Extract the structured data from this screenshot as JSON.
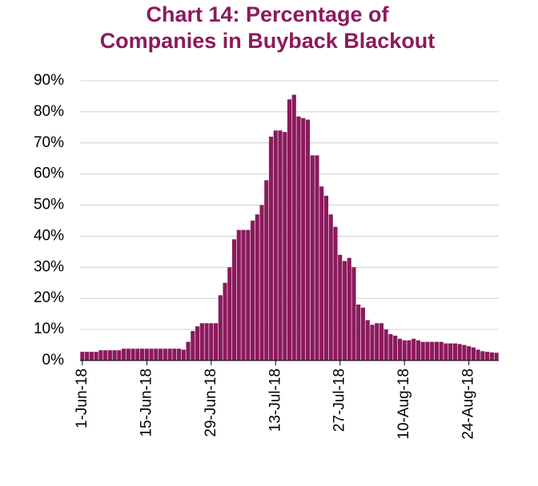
{
  "chart_data": {
    "type": "bar",
    "title": [
      "Chart 14: Percentage of",
      "Companies in Buyback Blackout"
    ],
    "categories": [
      "1-Jun-18",
      null,
      null,
      null,
      null,
      null,
      null,
      null,
      null,
      null,
      null,
      null,
      null,
      null,
      "15-Jun-18",
      null,
      null,
      null,
      null,
      null,
      null,
      null,
      null,
      null,
      null,
      null,
      null,
      null,
      "29-Jun-18",
      null,
      null,
      null,
      null,
      null,
      null,
      null,
      null,
      null,
      null,
      null,
      null,
      null,
      "13-Jul-18",
      null,
      null,
      null,
      null,
      null,
      null,
      null,
      null,
      null,
      null,
      null,
      null,
      null,
      "27-Jul-18",
      null,
      null,
      null,
      null,
      null,
      null,
      null,
      null,
      null,
      null,
      null,
      null,
      null,
      "10-Aug-18",
      null,
      null,
      null,
      null,
      null,
      null,
      null,
      null,
      null,
      null,
      null,
      null,
      null,
      "24-Aug-18",
      null,
      null,
      null,
      null,
      null,
      null
    ],
    "values": [
      2.8,
      2.8,
      2.8,
      2.8,
      3.3,
      3.3,
      3.3,
      3.3,
      3.3,
      3.8,
      3.8,
      3.8,
      3.8,
      3.8,
      3.8,
      3.8,
      3.8,
      3.8,
      3.8,
      3.8,
      3.8,
      3.8,
      3.5,
      6,
      9.5,
      11,
      12,
      12,
      12,
      12,
      21,
      25,
      30,
      39,
      42,
      42,
      42,
      45,
      47,
      50,
      58,
      72,
      74,
      74,
      73.5,
      84,
      85.5,
      78.5,
      78,
      77.5,
      66,
      66,
      56,
      53,
      47,
      43,
      34,
      32,
      33,
      30,
      18,
      17,
      13,
      11.5,
      12,
      12,
      10,
      8.5,
      8,
      7,
      6.5,
      6.5,
      7,
      6.5,
      6,
      6,
      6,
      6,
      6,
      5.5,
      5.5,
      5.5,
      5.3,
      5,
      4.6,
      4.2,
      3.5,
      3,
      2.8,
      2.6,
      2.5
    ],
    "color": "#8b1a5c",
    "ylim": [
      0,
      90
    ],
    "yticks": [
      {
        "value": 0,
        "label": "0%"
      },
      {
        "value": 10,
        "label": "10%"
      },
      {
        "value": 20,
        "label": "20%"
      },
      {
        "value": 30,
        "label": "30%"
      },
      {
        "value": 40,
        "label": "40%"
      },
      {
        "value": 50,
        "label": "50%"
      },
      {
        "value": 60,
        "label": "60%"
      },
      {
        "value": 70,
        "label": "70%"
      },
      {
        "value": 80,
        "label": "80%"
      },
      {
        "value": 90,
        "label": "90%"
      }
    ],
    "grid": true
  }
}
